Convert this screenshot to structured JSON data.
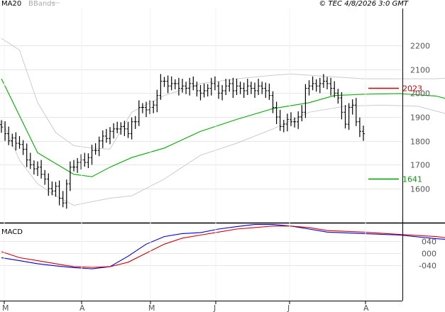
{
  "chart_data": [
    {
      "type": "line",
      "subtype": "ohlc-bars",
      "title": "",
      "source_label": "© TEC 4/8/2026 3:0 GMT",
      "legend": [
        "MA20",
        "BBands"
      ],
      "ylim": [
        1500,
        2250
      ],
      "yticks": [
        1600,
        1700,
        1800,
        1900,
        2000,
        2100,
        2200
      ],
      "x_labels": [
        "M",
        "A",
        "M",
        "J",
        "J",
        "A"
      ],
      "marked_levels": [
        {
          "label": "2023",
          "value": 2023,
          "color": "#cc0000"
        },
        {
          "label": "1641",
          "value": 1641,
          "color": "#009900"
        }
      ],
      "series": [
        {
          "name": "OHLC",
          "color": "#000000",
          "close": [
            1858,
            1830,
            1800,
            1812,
            1790,
            1785,
            1765,
            1720,
            1700,
            1683,
            1690,
            1660,
            1640,
            1600,
            1590,
            1610,
            1560,
            1540,
            1620,
            1690,
            1690,
            1710,
            1720,
            1710,
            1730,
            1760,
            1760,
            1800,
            1820,
            1810,
            1840,
            1850,
            1850,
            1860,
            1850,
            1830,
            1880,
            1880,
            1940,
            1940,
            1930,
            1940,
            1950,
            1990,
            2050,
            2050,
            2030,
            2040,
            2040,
            2020,
            2030,
            2020,
            2040,
            2030,
            2010,
            2000,
            2010,
            2020,
            2040,
            2030,
            2000,
            2010,
            2030,
            2040,
            2010,
            2030,
            2020,
            2010,
            2030,
            2020,
            2010,
            2030,
            2020,
            2010,
            1990,
            1940,
            1900,
            1860,
            1870,
            1890,
            1880,
            1880,
            1900,
            1920,
            2020,
            2030,
            2040,
            2030,
            2040,
            2050,
            2040,
            2020,
            2000,
            1980,
            1920,
            1870,
            1940,
            1950,
            1880,
            1840,
            1830
          ]
        },
        {
          "name": "MA20",
          "color": "#00aa00",
          "x": [
            0,
            10,
            20,
            25,
            30,
            36,
            45,
            55,
            65,
            75,
            85,
            92,
            100,
            110,
            120,
            130,
            140,
            150,
            160,
            170,
            180,
            190,
            200,
            204
          ],
          "values": [
            2060,
            1750,
            1660,
            1650,
            1690,
            1730,
            1770,
            1840,
            1890,
            1935,
            1960,
            1990,
            1995,
            1998,
            1988,
            1950,
            1930,
            1945,
            1960,
            1970,
            1980,
            1960,
            1965,
            1955
          ]
        },
        {
          "name": "BBands upper",
          "color": "#cccccc",
          "x": [
            0,
            5,
            10,
            15,
            20,
            25,
            30,
            36,
            45,
            55,
            65,
            75,
            80,
            90,
            100,
            110,
            120,
            130,
            140,
            150,
            160,
            170,
            180,
            190,
            200,
            204
          ],
          "values": [
            2230,
            2180,
            1960,
            1835,
            1780,
            1770,
            1765,
            1920,
            1990,
            2040,
            2060,
            2075,
            2080,
            2070,
            2060,
            2060,
            2060,
            2070,
            2060,
            2080,
            2080,
            2090,
            2090,
            2090,
            2100,
            2100
          ]
        },
        {
          "name": "BBands lower",
          "color": "#cccccc",
          "x": [
            0,
            5,
            10,
            15,
            20,
            25,
            30,
            36,
            45,
            55,
            65,
            75,
            85,
            95,
            105,
            115,
            125,
            130,
            140,
            150,
            160,
            170,
            180,
            190,
            200,
            204
          ],
          "values": [
            1890,
            1720,
            1620,
            1570,
            1530,
            1545,
            1560,
            1570,
            1640,
            1740,
            1790,
            1850,
            1920,
            1945,
            1950,
            1945,
            1905,
            1835,
            1830,
            1840,
            1850,
            1860,
            1845,
            1830,
            1815,
            1800
          ]
        }
      ]
    },
    {
      "type": "line",
      "title": "MACD",
      "ylim": [
        -70,
        95
      ],
      "yticks": [
        40,
        0,
        -40
      ],
      "ytick_labels": [
        "040",
        "000",
        "-040"
      ],
      "series": [
        {
          "name": "MACD",
          "color": "#0000cc",
          "x": [
            0,
            5,
            10,
            15,
            20,
            25,
            30,
            35,
            40,
            45,
            50,
            55,
            60,
            65,
            70,
            75,
            80,
            85,
            90,
            100,
            110,
            120,
            130,
            140,
            150,
            160,
            165,
            170,
            180,
            190,
            195,
            200,
            204
          ],
          "values": [
            -15,
            -25,
            -35,
            -42,
            -48,
            -52,
            -45,
            -10,
            30,
            55,
            65,
            68,
            80,
            88,
            95,
            95,
            90,
            80,
            70,
            65,
            60,
            48,
            40,
            0,
            -5,
            25,
            40,
            48,
            35,
            10,
            -5,
            -25,
            -35
          ]
        },
        {
          "name": "Signal",
          "color": "#cc0000",
          "x": [
            0,
            5,
            10,
            15,
            20,
            25,
            30,
            35,
            40,
            45,
            50,
            55,
            60,
            65,
            70,
            75,
            80,
            85,
            90,
            100,
            110,
            120,
            130,
            140,
            150,
            160,
            165,
            170,
            180,
            190,
            195,
            200,
            204
          ],
          "values": [
            5,
            -15,
            -25,
            -35,
            -45,
            -47,
            -45,
            -30,
            0,
            30,
            50,
            60,
            70,
            80,
            85,
            90,
            90,
            85,
            75,
            70,
            62,
            55,
            42,
            10,
            0,
            18,
            32,
            42,
            40,
            25,
            15,
            0,
            -10
          ]
        }
      ]
    }
  ]
}
